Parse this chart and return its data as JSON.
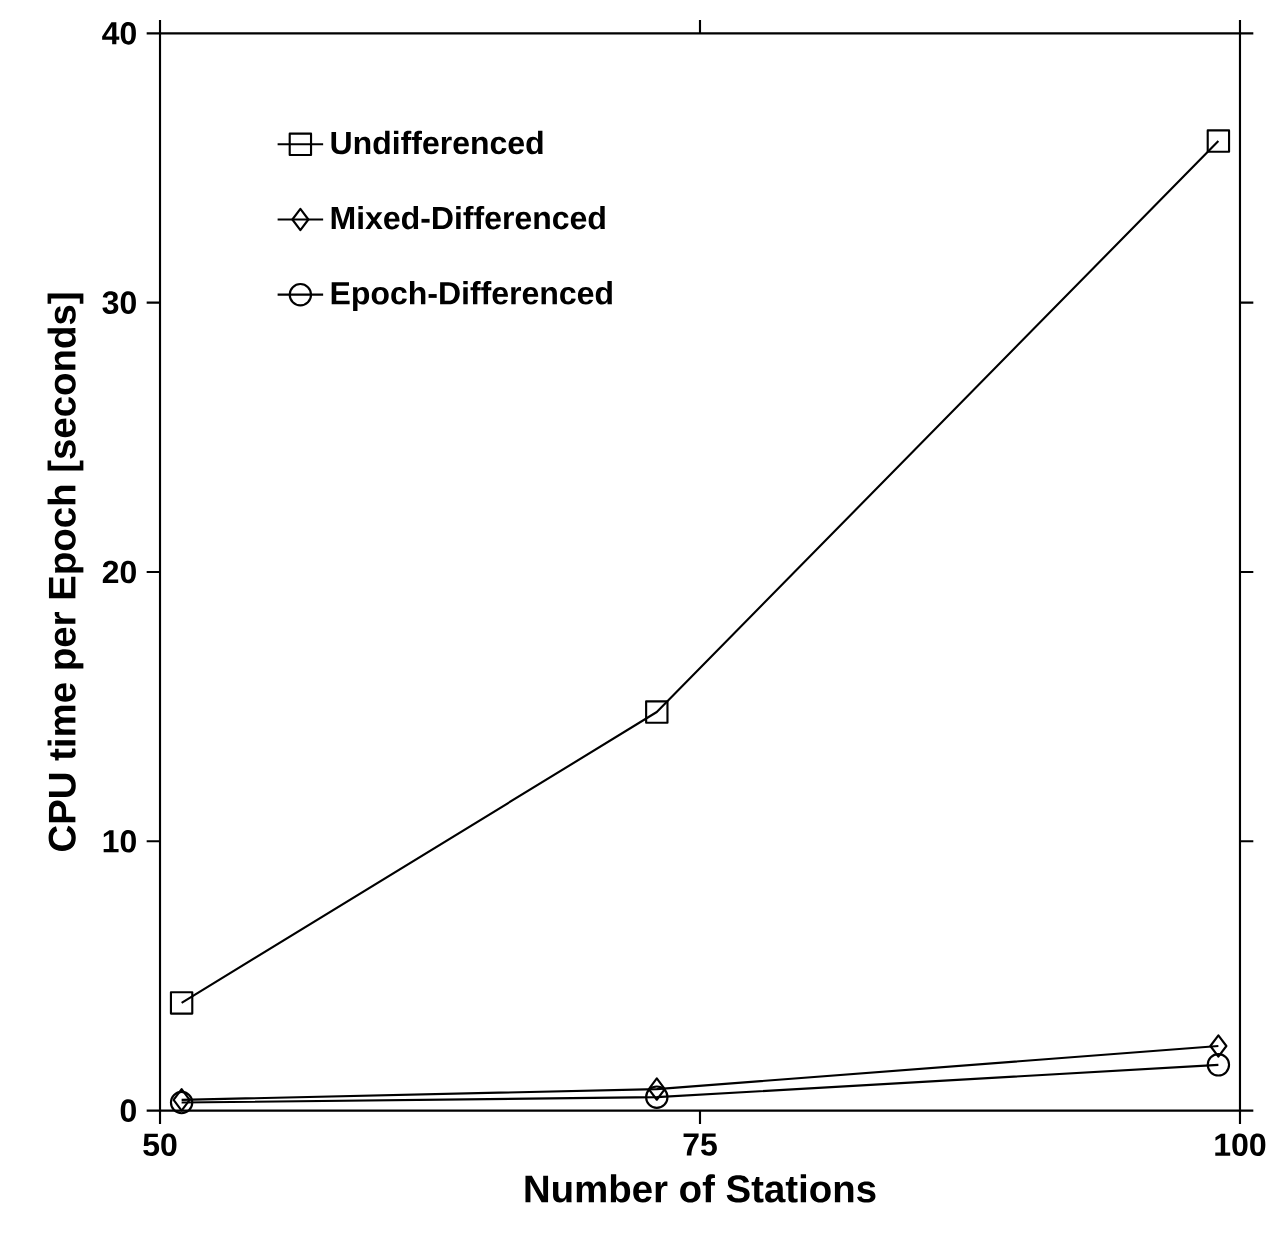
{
  "chart_data": {
    "type": "line",
    "xlabel": "Number of Stations",
    "ylabel": "CPU time per Epoch [seconds]",
    "x": [
      51,
      73,
      99
    ],
    "xlim": [
      50,
      100
    ],
    "xticks": [
      50,
      75,
      100
    ],
    "ylim": [
      0,
      40
    ],
    "yticks": [
      0,
      10,
      20,
      30,
      40
    ],
    "grid": false,
    "legend": "top left",
    "line_style": "solid",
    "series": [
      {
        "name": "Undifferenced",
        "color": "#000000",
        "marker": "square",
        "values": [
          4.0,
          14.8,
          36.0
        ]
      },
      {
        "name": "Mixed-Differenced",
        "color": "#000000",
        "marker": "diamond",
        "values": [
          0.4,
          0.8,
          2.4
        ]
      },
      {
        "name": "Epoch-Differenced",
        "color": "#000000",
        "marker": "circle",
        "values": [
          0.3,
          0.5,
          1.7
        ]
      }
    ]
  }
}
